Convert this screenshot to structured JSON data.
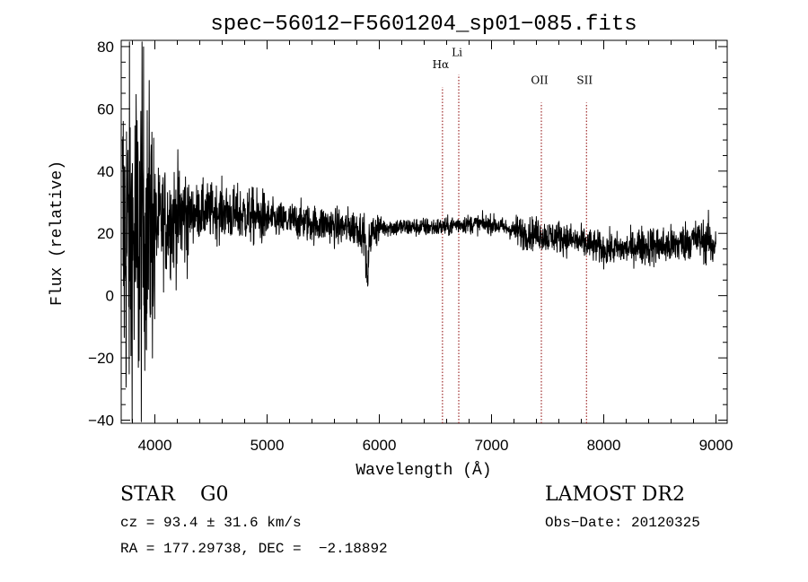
{
  "chart_data": {
    "type": "line",
    "title": "spec−56012−F5601204_sp01−085.fits",
    "xlabel": "Wavelength (Å)",
    "ylabel": "Flux (relative)",
    "xlim": [
      3700,
      9100
    ],
    "ylim": [
      -41,
      82
    ],
    "xticks": [
      4000,
      5000,
      6000,
      7000,
      8000,
      9000
    ],
    "yticks": [
      -40,
      -20,
      0,
      20,
      40,
      60,
      80
    ],
    "ytick_labels": [
      "−40",
      "−20",
      "0",
      "20",
      "40",
      "60",
      "80"
    ],
    "grid": false,
    "line_color": "#000000",
    "marker_color": "#8b0000",
    "spectral_lines": [
      {
        "label": "Hα",
        "x": 6563,
        "label_y": 73
      },
      {
        "label": "Li",
        "x": 6708,
        "label_y": 77
      },
      {
        "label": "OII",
        "x": 7444,
        "label_y": 68
      },
      {
        "label": "SII",
        "x": 7846,
        "label_y": 68
      }
    ],
    "series": [
      {
        "x": [
          3710,
          3760,
          3800,
          3850,
          3900,
          3950,
          4000,
          4100,
          4200,
          4300,
          4400,
          4500,
          4600,
          4700,
          4800,
          4900,
          5000,
          5100,
          5200,
          5300,
          5400,
          5500,
          5560,
          5600,
          5700,
          5800,
          5870,
          5890,
          5896,
          5910,
          5950,
          6000,
          6100,
          6200,
          6300,
          6400,
          6500,
          6600,
          6700,
          6800,
          6900,
          7000,
          7100,
          7200,
          7300,
          7400,
          7500,
          7600,
          7700,
          7800,
          7900,
          8000,
          8100,
          8200,
          8300,
          8400,
          8500,
          8600,
          8700,
          8750,
          8800,
          8850,
          8900,
          8950,
          9000
        ],
        "y": [
          20,
          18,
          15,
          16,
          20,
          22,
          22,
          24,
          25,
          26,
          27,
          27,
          27,
          26,
          26,
          25,
          25,
          24,
          24,
          24,
          23,
          23,
          23,
          22,
          22,
          22,
          20,
          5,
          3,
          18,
          21,
          22,
          22,
          22,
          22,
          22,
          22,
          22,
          23,
          23,
          23,
          23,
          22,
          21,
          20,
          20,
          19,
          19,
          18,
          17,
          16,
          15,
          15,
          15,
          16,
          16,
          16,
          16,
          17,
          18,
          18,
          18,
          18,
          17,
          16
        ]
      }
    ]
  },
  "info": {
    "object_type": "STAR    G0",
    "survey": "LAMOST DR2",
    "cz": "cz = 93.4 ± 31.6 km/s",
    "obs_date": "Obs−Date: 20120325",
    "radec": "RA = 177.29738, DEC =  −2.18892"
  }
}
